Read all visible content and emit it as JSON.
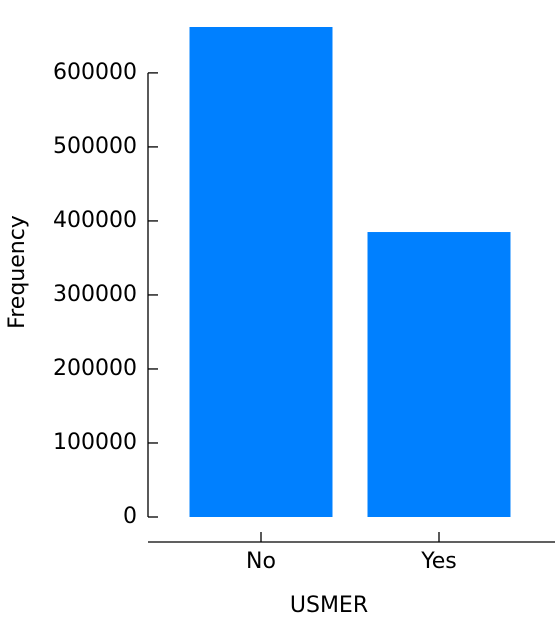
{
  "chart_data": {
    "type": "bar",
    "xlabel": "USMER",
    "ylabel": "Frequency",
    "categories": [
      "No",
      "Yes"
    ],
    "values": [
      662000,
      385000
    ],
    "color": "#0080ff",
    "ylim": [
      0,
      662000
    ],
    "yticks": [
      0,
      100000,
      200000,
      300000,
      400000,
      500000,
      600000
    ]
  }
}
